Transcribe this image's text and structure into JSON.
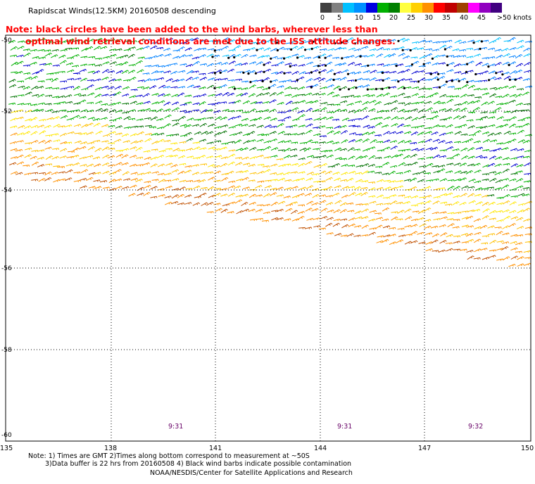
{
  "title": "Rapidscat Winds(12.5KM) 20160508 descending",
  "note_line1": "Note: black circles have been added to the wind barbs, wherever less than",
  "note_line2": "optimal wind retrieval conditions are met due to the ISS attitude changes.",
  "colorbar": {
    "labels": [
      "0",
      "5",
      "10",
      "15",
      "20",
      "25",
      "30",
      "35",
      "40",
      "45",
      ">50 knots"
    ],
    "colors": [
      "#404040",
      "#808080",
      "#00c0ff",
      "#0090ff",
      "#0000e0",
      "#00b000",
      "#008000",
      "#ffff40",
      "#ffd000",
      "#ff9000",
      "#ff0000",
      "#c00000",
      "#a04000",
      "#ff00ff",
      "#9000c0",
      "#400080"
    ]
  },
  "lat_labels": [
    "-50",
    "-52",
    "-54",
    "-56",
    "-58",
    "-60"
  ],
  "lon_labels": [
    "135",
    "138",
    "141",
    "144",
    "147",
    "150"
  ],
  "times": [
    "9:31",
    "9:31",
    "9:32"
  ],
  "footnote_line1": "Note: 1) Times are GMT 2)Times along bottom correspond to measurement at ~50S",
  "footnote_line2": "3)Data buffer is 22 hrs from 20160508 4) Black wind barbs indicate possible contamination",
  "credit": "NOAA/NESDIS/Center for Satellite Applications and Research",
  "palette": {
    "light_blue": "#00c0ff",
    "mid_blue": "#0080ff",
    "dark_blue": "#0000d0",
    "green": "#00b000",
    "dark_green": "#007000",
    "yellow": "#ffe600",
    "gold": "#ffc000",
    "orange": "#ff9000",
    "brown": "#c05000"
  }
}
